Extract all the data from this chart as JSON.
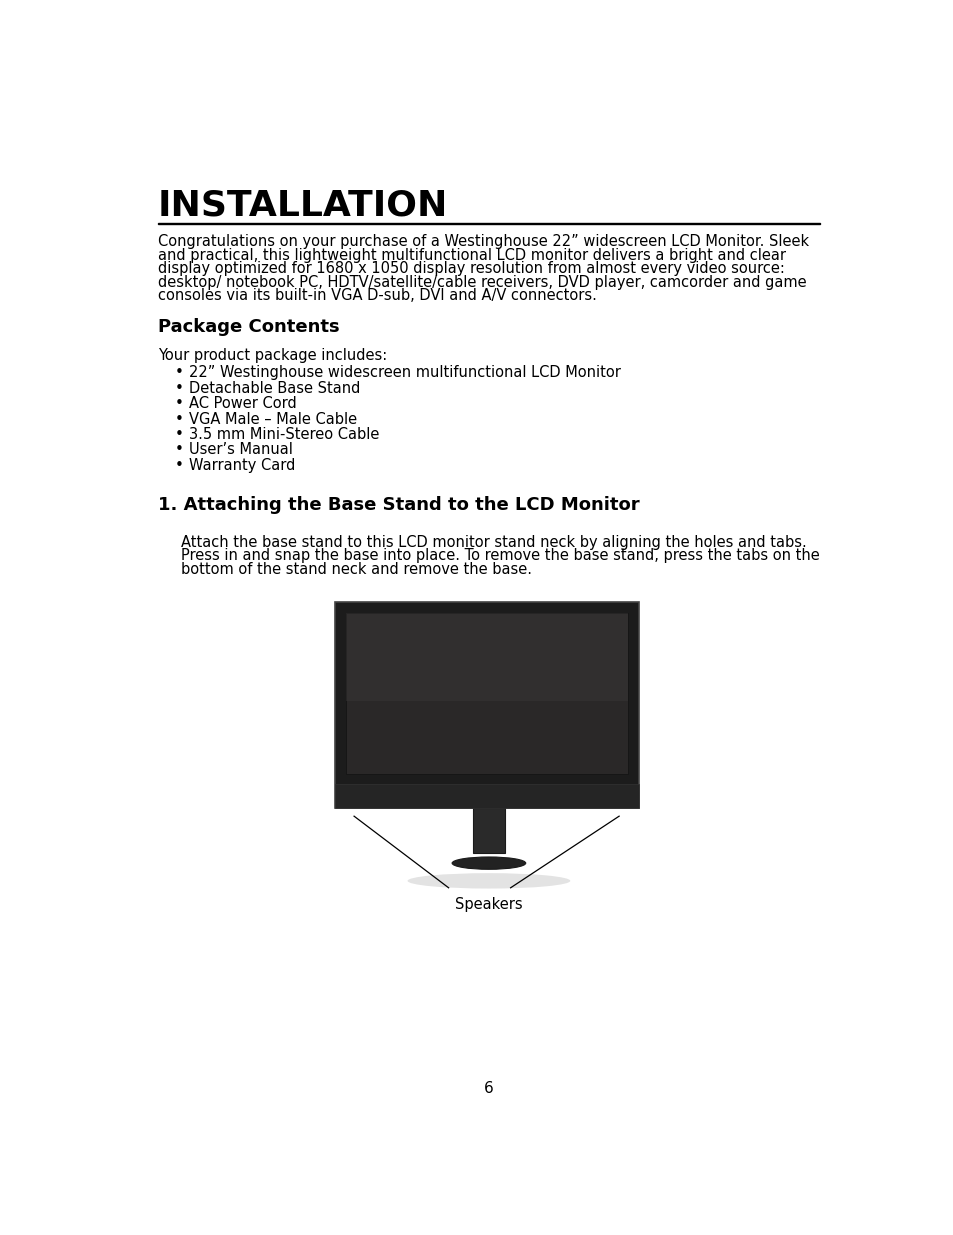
{
  "title": "INSTALLATION",
  "bg_color": "#ffffff",
  "text_color": "#000000",
  "intro_lines": [
    "Congratulations on your purchase of a Westinghouse 22” widescreen LCD Monitor. Sleek",
    "and practical, this lightweight multifunctional LCD monitor delivers a bright and clear",
    "display optimized for 1680 x 1050 display resolution from almost every video source:",
    "desktop/ notebook PC, HDTV/satellite/cable receivers, DVD player, camcorder and game",
    "consoles via its built-in VGA D-sub, DVI and A/V connectors."
  ],
  "section1_title": "Package Contents",
  "package_intro": "Your product package includes:",
  "bullet_items": [
    "22” Westinghouse widescreen multifunctional LCD Monitor",
    "Detachable Base Stand",
    "AC Power Cord",
    "VGA Male – Male Cable",
    "3.5 mm Mini-Stereo Cable",
    "User’s Manual",
    "Warranty Card"
  ],
  "section2_title": "1. Attaching the Base Stand to the LCD Monitor",
  "attach_lines": [
    "Attach the base stand to this LCD monitor stand neck by aligning the holes and tabs.",
    "Press in and snap the base into place. To remove the base stand, press the tabs on the",
    "bottom of the stand neck and remove the base."
  ],
  "speakers_label": "Speakers",
  "page_number": "6",
  "bezel_color": "#1c1c1c",
  "screen_color": "#2a2828",
  "screen_highlight": "#3a3838",
  "bottom_bar_color": "#252525",
  "neck_color": "#2a2a2a",
  "base_color": "#222222",
  "shadow_color": "#cccccc",
  "line_color": "#000000"
}
